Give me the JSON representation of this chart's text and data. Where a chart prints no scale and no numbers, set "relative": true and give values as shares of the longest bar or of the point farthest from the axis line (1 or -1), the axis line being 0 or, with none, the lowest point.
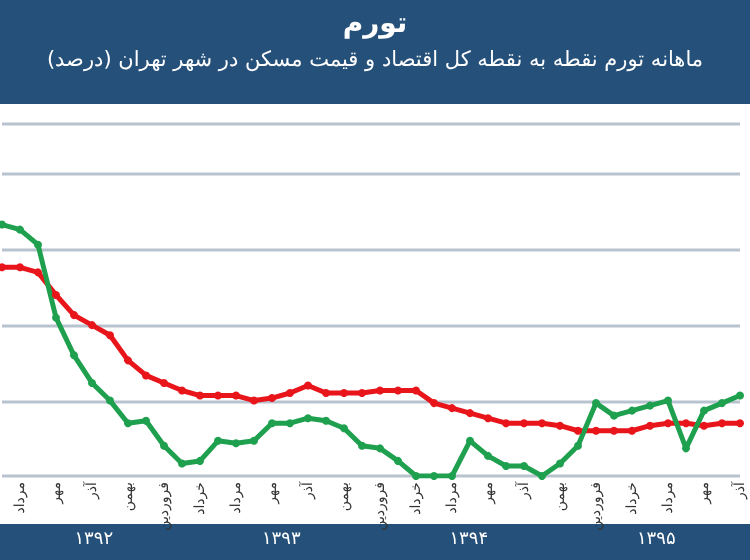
{
  "chart_data": {
    "type": "line",
    "title": "تورم",
    "subtitle": "ماهانه تورم نقطه به نقطه کل اقتصاد و قیمت مسکن در شهر تهران (درصد)",
    "categories": [
      null,
      "مرداد",
      null,
      "مهر",
      null,
      "آذر",
      null,
      "بهمن",
      null,
      "فروردین",
      null,
      "خرداد",
      null,
      "مرداد",
      null,
      "مهر",
      null,
      "آذر",
      null,
      "بهمن",
      null,
      "فروردین",
      null,
      "خرداد",
      null,
      "مرداد",
      null,
      "مهر",
      null,
      "آذر",
      null,
      "بهمن",
      null,
      "فروردین",
      null,
      "خرداد",
      null,
      "مرداد",
      null,
      "مهر",
      null,
      "آذر"
    ],
    "relative": true,
    "grid": "y",
    "marker": "circle",
    "line_style": "solid",
    "series": [
      {
        "color": "#e8151b",
        "values": [
          0.83,
          0.83,
          0.81,
          0.72,
          0.64,
          0.6,
          0.56,
          0.46,
          0.4,
          0.37,
          0.34,
          0.32,
          0.32,
          0.32,
          0.3,
          0.31,
          0.33,
          0.36,
          0.33,
          0.33,
          0.33,
          0.34,
          0.34,
          0.34,
          0.29,
          0.27,
          0.25,
          0.23,
          0.21,
          0.21,
          0.21,
          0.2,
          0.18,
          0.18,
          0.18,
          0.18,
          0.2,
          0.21,
          0.21,
          0.2,
          0.21,
          0.21
        ]
      },
      {
        "color": "#1fa04f",
        "values": [
          1,
          0.98,
          0.92,
          0.63,
          0.48,
          0.37,
          0.3,
          0.21,
          0.22,
          0.12,
          0.05,
          0.06,
          0.14,
          0.13,
          0.14,
          0.21,
          0.21,
          0.23,
          0.22,
          0.19,
          0.12,
          0.11,
          0.06,
          0,
          0,
          0,
          0.14,
          0.08,
          0.04,
          0.04,
          0,
          0.05,
          0.12,
          0.29,
          0.24,
          0.26,
          0.28,
          0.3,
          0.11,
          0.26,
          0.29,
          0.32
        ]
      }
    ],
    "annotations": [
      "۱۳۹۲",
      "۱۳۹۳",
      "۱۳۹۴",
      "۱۳۹۵"
    ]
  }
}
